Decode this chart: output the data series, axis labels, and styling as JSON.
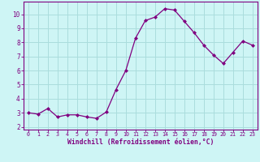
{
  "x": [
    0,
    1,
    2,
    3,
    4,
    5,
    6,
    7,
    8,
    9,
    10,
    11,
    12,
    13,
    14,
    15,
    16,
    17,
    18,
    19,
    20,
    21,
    22,
    23
  ],
  "y": [
    3.0,
    2.9,
    3.3,
    2.7,
    2.85,
    2.85,
    2.7,
    2.6,
    3.05,
    4.65,
    6.0,
    8.3,
    9.55,
    9.8,
    10.4,
    10.3,
    9.5,
    8.7,
    7.8,
    7.1,
    6.5,
    7.3,
    8.1,
    7.8
  ],
  "line_color": "#800080",
  "marker": "D",
  "marker_size": 2,
  "bg_color": "#cef5f5",
  "grid_color": "#aadddd",
  "xlabel": "Windchill (Refroidissement éolien,°C)",
  "xlabel_color": "#800080",
  "tick_color": "#800080",
  "xlim": [
    -0.5,
    23.5
  ],
  "ylim": [
    1.8,
    10.9
  ],
  "yticks": [
    2,
    3,
    4,
    5,
    6,
    7,
    8,
    9,
    10
  ],
  "xticks": [
    0,
    1,
    2,
    3,
    4,
    5,
    6,
    7,
    8,
    9,
    10,
    11,
    12,
    13,
    14,
    15,
    16,
    17,
    18,
    19,
    20,
    21,
    22,
    23
  ],
  "spine_color": "#800080",
  "xlabel_fontsize": 5.8,
  "xtick_fontsize": 4.8,
  "ytick_fontsize": 5.5
}
